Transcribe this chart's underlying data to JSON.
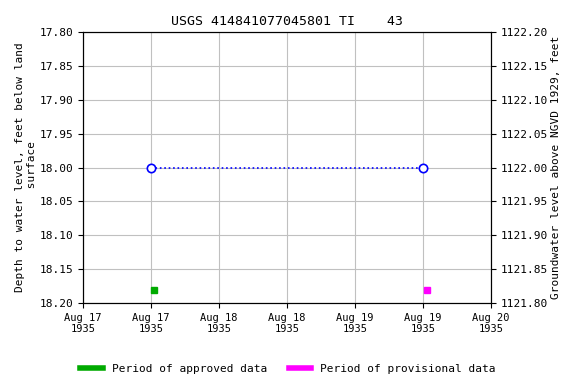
{
  "title": "USGS 414841077045801 TI    43",
  "ylabel_left": "Depth to water level, feet below land\n surface",
  "ylabel_right": "Groundwater level above NGVD 1929, feet",
  "ylim_left_top": 17.8,
  "ylim_left_bottom": 18.2,
  "ylim_right_top": 1122.2,
  "ylim_right_bottom": 1121.8,
  "yticks_left": [
    17.8,
    17.85,
    17.9,
    17.95,
    18.0,
    18.05,
    18.1,
    18.15,
    18.2
  ],
  "yticks_right": [
    1122.2,
    1122.15,
    1122.1,
    1122.05,
    1122.0,
    1121.95,
    1121.9,
    1121.85,
    1121.8
  ],
  "xlim": [
    0,
    6
  ],
  "xtick_positions": [
    0,
    1,
    2,
    3,
    4,
    5,
    6
  ],
  "xtick_labels": [
    "Aug 17\n1935",
    "Aug 17\n1935",
    "Aug 18\n1935",
    "Aug 18\n1935",
    "Aug 19\n1935",
    "Aug 19\n1935",
    "Aug 20\n1935"
  ],
  "line_x": [
    1,
    5
  ],
  "line_y": [
    18.0,
    18.0
  ],
  "line_color": "#0000ff",
  "marker_style": "o",
  "marker_facecolor": "white",
  "marker_edgecolor": "#0000ff",
  "marker_size": 6,
  "green_point_x": [
    1.05
  ],
  "green_point_y": [
    18.18
  ],
  "green_color": "#00aa00",
  "magenta_point_x": [
    5.05
  ],
  "magenta_point_y": [
    18.18
  ],
  "magenta_color": "#ff00ff",
  "grid_color": "#c0c0c0",
  "bg_color": "#ffffff",
  "legend_items": [
    "Period of approved data",
    "Period of provisional data"
  ],
  "legend_colors": [
    "#00aa00",
    "#ff00ff"
  ]
}
